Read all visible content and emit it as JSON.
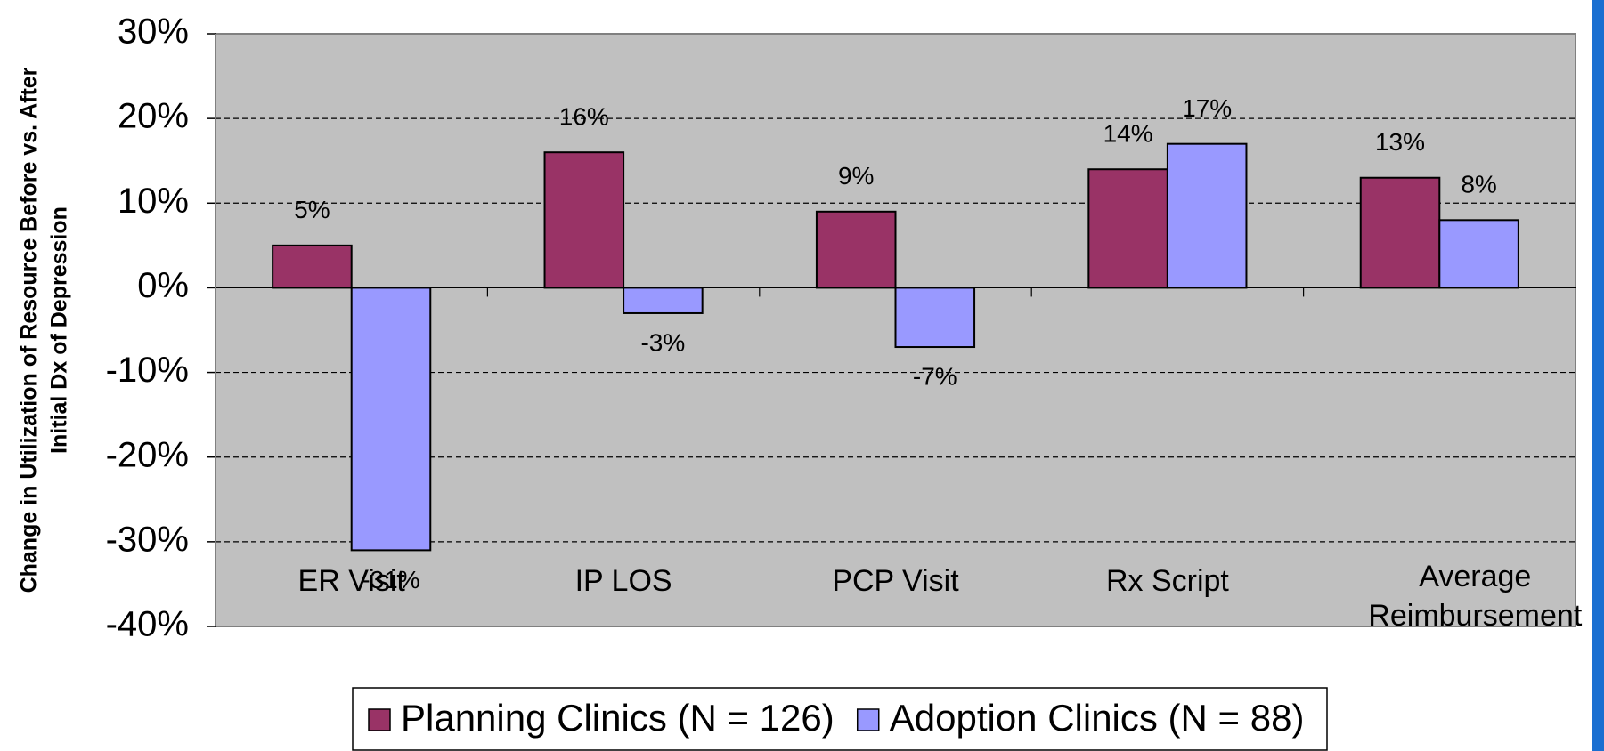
{
  "chart_data": {
    "type": "bar",
    "y_label": [
      "Change in Utilization of Resource Before vs. After",
      "Initial Dx of Depression"
    ],
    "categories": [
      "ER Visit",
      "IP LOS",
      "PCP Visit",
      "Rx Script",
      "Average Reimbursement"
    ],
    "series": [
      {
        "name": "Planning Clinics (N = 126)",
        "color": "#993366",
        "values": [
          5,
          16,
          9,
          14,
          13
        ],
        "value_labels": [
          "5%",
          "16%",
          "9%",
          "14%",
          "13%"
        ]
      },
      {
        "name": "Adoption Clinics (N = 88)",
        "color": "#9999ff",
        "values": [
          -31,
          -3,
          -7,
          17,
          8
        ],
        "value_labels": [
          "-31%",
          "-3%",
          "-7%",
          "17%",
          "8%"
        ]
      }
    ],
    "ylim": [
      -40,
      30
    ],
    "yticks": [
      {
        "value": -40,
        "label": "-40%"
      },
      {
        "value": -30,
        "label": "-30%"
      },
      {
        "value": -20,
        "label": "-20%"
      },
      {
        "value": -10,
        "label": "-10%"
      },
      {
        "value": 0,
        "label": "0%"
      },
      {
        "value": 10,
        "label": "10%"
      },
      {
        "value": 20,
        "label": "20%"
      },
      {
        "value": 30,
        "label": "30%"
      }
    ],
    "grid": true,
    "legend": "bottom"
  }
}
